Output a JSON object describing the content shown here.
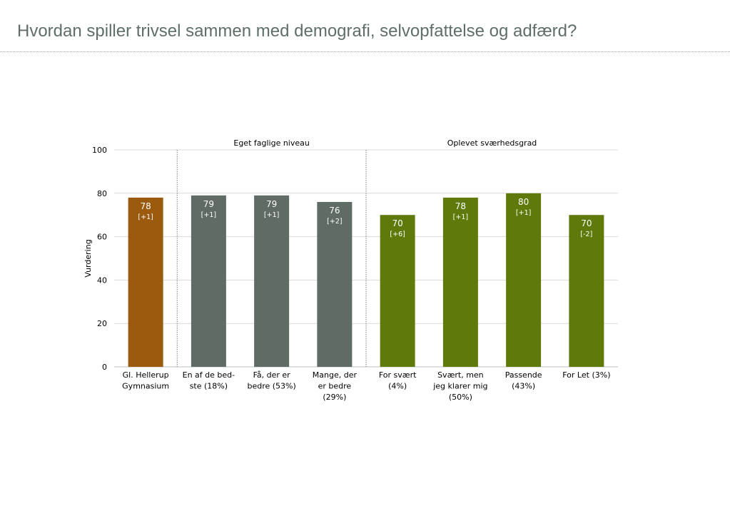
{
  "page": {
    "title": "Hvordan spiller trivsel sammen med demografi, selvopfattelse og adfærd?"
  },
  "chart_data": {
    "type": "bar",
    "ylabel": "Vurdering",
    "ylim": [
      0,
      100
    ],
    "yticks": [
      0,
      20,
      40,
      60,
      80,
      100
    ],
    "grid": true,
    "groups": [
      {
        "label": "Eget faglige niveau",
        "start": 1,
        "end": 3
      },
      {
        "label": "Oplevet sværhedsgrad",
        "start": 4,
        "end": 7
      }
    ],
    "categories": [
      [
        "Gl. Hellerup",
        "Gymnasium"
      ],
      [
        "En af de bed-",
        "ste (18%)"
      ],
      [
        "Få, der er",
        "bedre (53%)"
      ],
      [
        "Mange, der",
        "er bedre",
        "(29%)"
      ],
      [
        "For svært",
        "(4%)"
      ],
      [
        "Svært, men",
        "jeg klarer mig",
        "(50%)"
      ],
      [
        "Passende",
        "(43%)"
      ],
      [
        "For Let (3%)"
      ]
    ],
    "values": [
      78,
      79,
      79,
      76,
      70,
      78,
      80,
      70
    ],
    "value_labels": [
      "78",
      "79",
      "79",
      "76",
      "70",
      "78",
      "80",
      "70"
    ],
    "diff_labels": [
      "[+1]",
      "[+1]",
      "[+1]",
      "[+2]",
      "[+6]",
      "[+1]",
      "[+1]",
      "[-2]"
    ],
    "colors": [
      "#9b5a0e",
      "#5f6b64",
      "#5f6b64",
      "#5f6b64",
      "#5f7a0a",
      "#5f7a0a",
      "#5f7a0a",
      "#5f7a0a"
    ],
    "colors_meaning": {
      "school": "#9b5a0e",
      "own_level": "#5f6b64",
      "difficulty": "#5f7a0a"
    }
  }
}
